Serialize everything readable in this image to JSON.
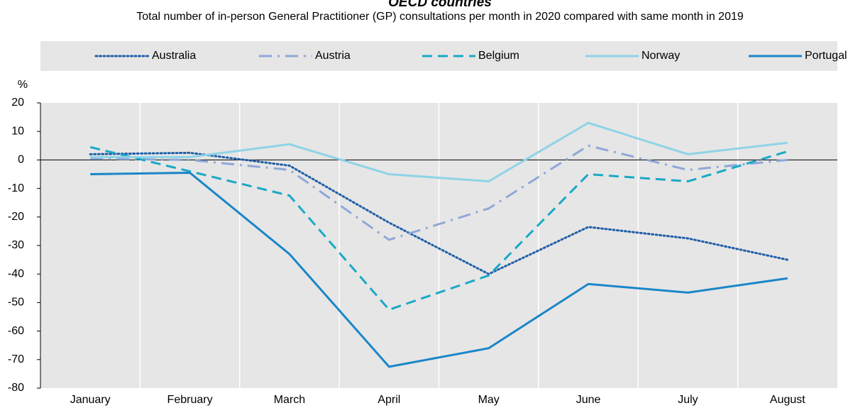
{
  "chart_data": {
    "type": "line",
    "title": "OECD countries",
    "subtitle": "Total number of in-person General Practitioner (GP) consultations per month in 2020 compared with same month in 2019",
    "y_label": "%",
    "categories": [
      "January",
      "February",
      "March",
      "April",
      "May",
      "June",
      "July",
      "August"
    ],
    "series": [
      {
        "name": "Australia",
        "color": "#1f5fa8",
        "dash": "dotted",
        "values": [
          2,
          2.5,
          -2,
          -22,
          -40,
          -23.5,
          -27.5,
          -35
        ]
      },
      {
        "name": "Austria",
        "color": "#8fa8d8",
        "dash": "dashdot",
        "values": [
          0.5,
          0,
          -3.5,
          -28,
          -17,
          5,
          -3.5,
          0
        ]
      },
      {
        "name": "Belgium",
        "color": "#19a9c6",
        "dash": "dashed",
        "values": [
          4.5,
          -4,
          -12.5,
          -52.5,
          -40.5,
          -5,
          -7.5,
          3
        ]
      },
      {
        "name": "Norway",
        "color": "#8fd3e6",
        "dash": "solid",
        "values": [
          1,
          1,
          5.5,
          -5,
          -7.5,
          13,
          2,
          6
        ]
      },
      {
        "name": "Portugal",
        "color": "#1a86c8",
        "dash": "solid",
        "values": [
          -5,
          -4.5,
          -33,
          -72.5,
          -66,
          -43.5,
          -46.5,
          -41.5
        ]
      }
    ],
    "ylim": [
      -80,
      20
    ],
    "yticks": [
      20,
      10,
      0,
      -10,
      -20,
      -30,
      -40,
      -50,
      -60,
      -70,
      -80
    ],
    "grid": true,
    "legend": "top"
  }
}
